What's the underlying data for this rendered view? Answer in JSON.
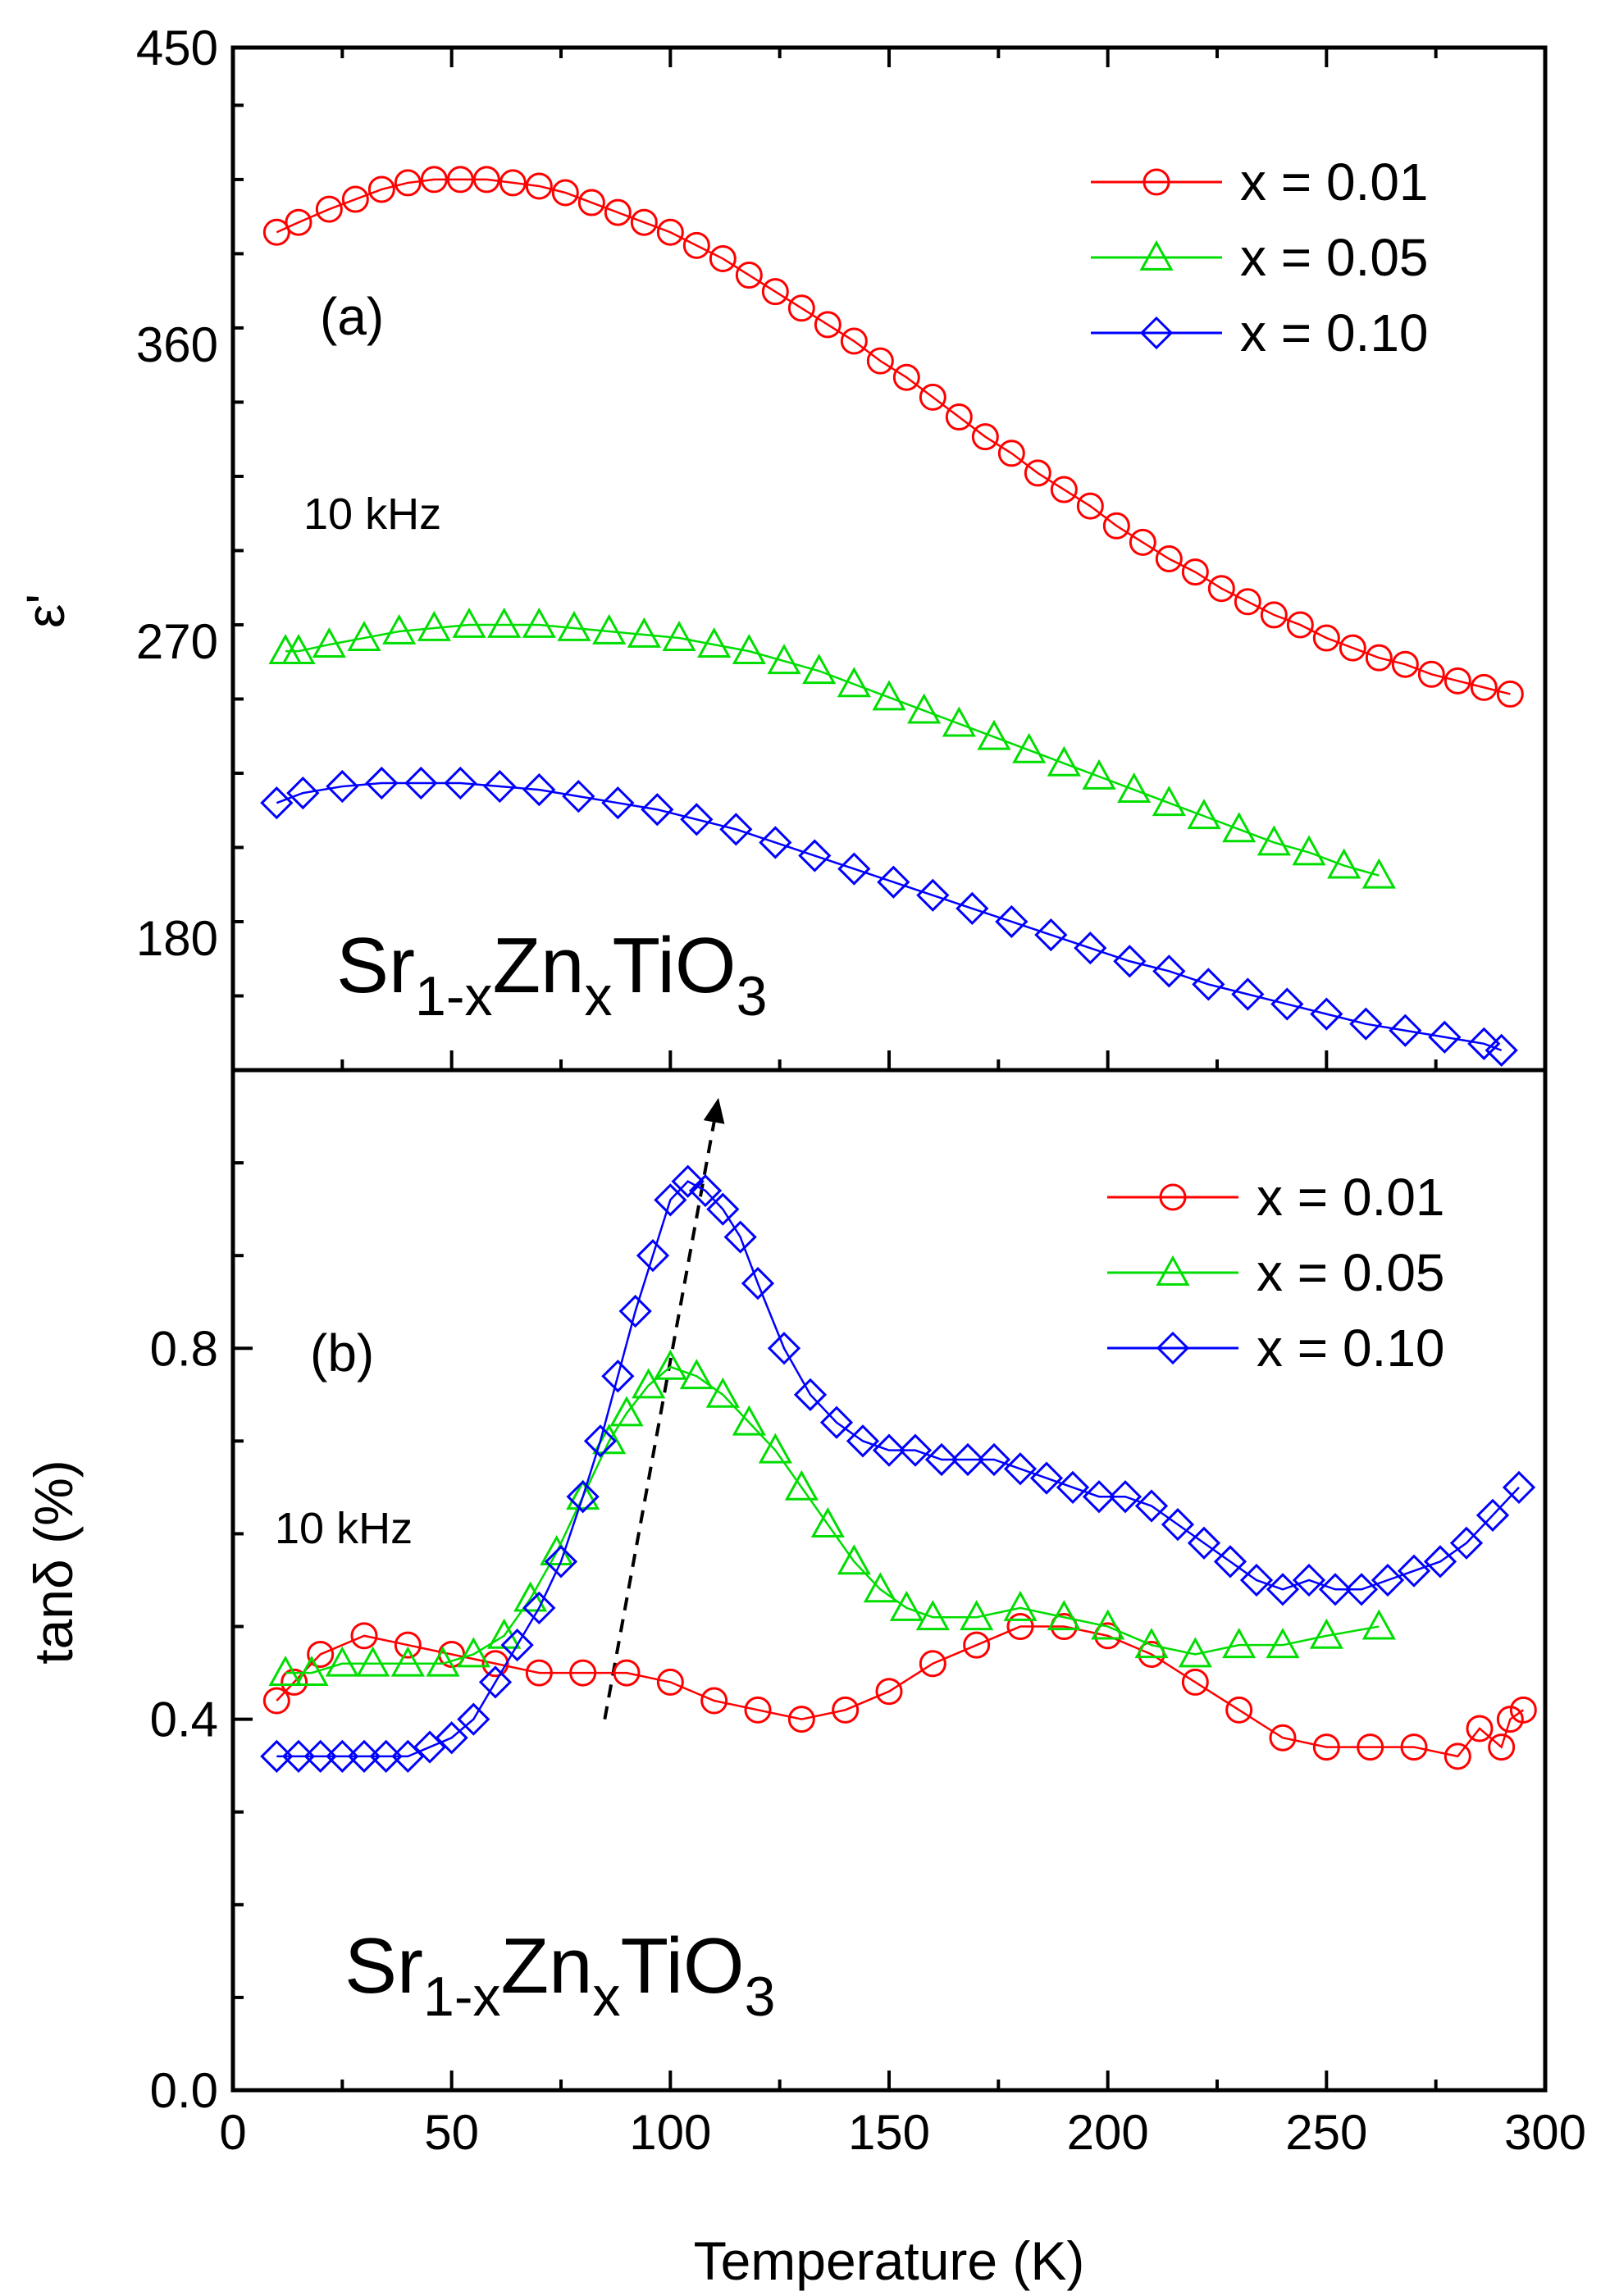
{
  "chart_data": [
    {
      "type": "line",
      "panel_label": "(a)",
      "ylabel": "ε'",
      "annotation": "10 kHz",
      "formula": {
        "p1": "Sr",
        "s1": "1-x",
        "p2": "Zn",
        "s2": "x",
        "p3": "TiO",
        "s3": "3"
      },
      "ylim": [
        140,
        450
      ],
      "yticks": [
        180,
        270,
        360,
        450
      ],
      "ytick_labels": [
        "180",
        "270",
        "360",
        "450"
      ],
      "xlim": [
        0,
        300
      ],
      "legend": "top-right",
      "series": [
        {
          "name": "x = 0.01",
          "label": "x = 0.01",
          "color": "#ff0000",
          "marker": "circle",
          "x": [
            10,
            15,
            22,
            28,
            34,
            40,
            46,
            52,
            58,
            64,
            70,
            76,
            82,
            88,
            94,
            100,
            106,
            112,
            118,
            124,
            130,
            136,
            142,
            148,
            154,
            160,
            166,
            172,
            178,
            184,
            190,
            196,
            202,
            208,
            214,
            220,
            226,
            232,
            238,
            244,
            250,
            256,
            262,
            268,
            274,
            280,
            286,
            292
          ],
          "y": [
            394,
            397,
            401,
            404,
            407,
            409,
            410,
            410,
            410,
            409,
            408,
            406,
            403,
            400,
            397,
            394,
            390,
            386,
            381,
            376,
            371,
            366,
            361,
            355,
            350,
            344,
            338,
            332,
            327,
            321,
            316,
            311,
            305,
            300,
            295,
            291,
            286,
            282,
            278,
            275,
            271,
            268,
            265,
            263,
            260,
            258,
            256,
            254
          ]
        },
        {
          "name": "x = 0.05",
          "label": "x = 0.05",
          "color": "#00dd00",
          "marker": "triangle",
          "x": [
            12,
            15,
            22,
            30,
            38,
            46,
            54,
            62,
            70,
            78,
            86,
            94,
            102,
            110,
            118,
            126,
            134,
            142,
            150,
            158,
            166,
            174,
            182,
            190,
            198,
            206,
            214,
            222,
            230,
            238,
            246,
            254,
            262
          ],
          "y": [
            267,
            267,
            269,
            271,
            273,
            274,
            275,
            275,
            275,
            274,
            273,
            272,
            271,
            269,
            267,
            264,
            261,
            257,
            253,
            249,
            245,
            241,
            237,
            233,
            229,
            225,
            221,
            217,
            213,
            209,
            206,
            202,
            199
          ]
        },
        {
          "name": "x = 0.10",
          "label": "x = 0.10",
          "color": "#0000ff",
          "marker": "diamond",
          "x": [
            10,
            16,
            25,
            34,
            43,
            52,
            61,
            70,
            79,
            88,
            97,
            106,
            115,
            124,
            133,
            142,
            151,
            160,
            169,
            178,
            187,
            196,
            205,
            214,
            223,
            232,
            241,
            250,
            259,
            268,
            277,
            286,
            290
          ],
          "y": [
            221,
            224,
            226,
            227,
            227,
            227,
            226,
            225,
            223,
            221,
            219,
            216,
            213,
            209,
            205,
            201,
            197,
            193,
            189,
            185,
            181,
            177,
            173,
            170,
            166,
            163,
            160,
            157,
            154,
            152,
            150,
            148,
            146
          ]
        }
      ]
    },
    {
      "type": "line",
      "panel_label": "(b)",
      "ylabel": "tanδ (%)",
      "xlabel": "Temperature (K)",
      "annotation": "10 kHz",
      "formula": {
        "p1": "Sr",
        "s1": "1-x",
        "p2": "Zn",
        "s2": "x",
        "p3": "TiO",
        "s3": "3"
      },
      "ylim": [
        0.0,
        1.1
      ],
      "yticks": [
        0.0,
        0.4,
        0.8
      ],
      "ytick_labels": [
        "0.0",
        "0.4",
        "0.8"
      ],
      "xlim": [
        0,
        300
      ],
      "xticks": [
        0,
        50,
        100,
        150,
        200,
        250,
        300
      ],
      "xtick_labels": [
        "0",
        "50",
        "100",
        "150",
        "200",
        "250",
        "300"
      ],
      "arrow": {
        "from": [
          85,
          0.4
        ],
        "to": [
          111,
          1.07
        ]
      },
      "legend": "top-right",
      "series": [
        {
          "name": "x = 0.01",
          "label": "x = 0.01",
          "color": "#ff0000",
          "marker": "circle",
          "x": [
            10,
            14,
            20,
            30,
            40,
            50,
            60,
            70,
            80,
            90,
            100,
            110,
            120,
            130,
            140,
            150,
            160,
            170,
            180,
            190,
            200,
            210,
            220,
            230,
            240,
            250,
            260,
            270,
            280,
            285,
            290,
            292,
            295
          ],
          "y": [
            0.42,
            0.44,
            0.47,
            0.49,
            0.48,
            0.47,
            0.46,
            0.45,
            0.45,
            0.45,
            0.44,
            0.42,
            0.41,
            0.4,
            0.41,
            0.43,
            0.46,
            0.48,
            0.5,
            0.5,
            0.49,
            0.47,
            0.44,
            0.41,
            0.38,
            0.37,
            0.37,
            0.37,
            0.36,
            0.39,
            0.37,
            0.4,
            0.41
          ]
        },
        {
          "name": "x = 0.05",
          "label": "x = 0.05",
          "color": "#00dd00",
          "marker": "triangle",
          "x": [
            12,
            18,
            25,
            32,
            40,
            48,
            55,
            62,
            68,
            74,
            80,
            86,
            90,
            95,
            100,
            106,
            112,
            118,
            124,
            130,
            136,
            142,
            148,
            154,
            160,
            170,
            180,
            190,
            200,
            210,
            220,
            230,
            240,
            250,
            262
          ],
          "y": [
            0.45,
            0.45,
            0.46,
            0.46,
            0.46,
            0.46,
            0.47,
            0.49,
            0.53,
            0.58,
            0.64,
            0.7,
            0.73,
            0.76,
            0.78,
            0.77,
            0.75,
            0.72,
            0.69,
            0.65,
            0.61,
            0.57,
            0.54,
            0.52,
            0.51,
            0.51,
            0.52,
            0.51,
            0.5,
            0.48,
            0.47,
            0.48,
            0.48,
            0.49,
            0.5
          ]
        },
        {
          "name": "x = 0.10",
          "label": "x = 0.10",
          "color": "#0000ff",
          "marker": "diamond",
          "x": [
            10,
            15,
            20,
            25,
            30,
            35,
            40,
            45,
            50,
            55,
            60,
            65,
            70,
            75,
            80,
            84,
            88,
            92,
            96,
            100,
            104,
            108,
            112,
            116,
            120,
            126,
            132,
            138,
            144,
            150,
            156,
            162,
            168,
            174,
            180,
            186,
            192,
            198,
            204,
            210,
            216,
            222,
            228,
            234,
            240,
            246,
            252,
            258,
            264,
            270,
            276,
            282,
            288,
            294
          ],
          "y": [
            0.36,
            0.36,
            0.36,
            0.36,
            0.36,
            0.36,
            0.36,
            0.37,
            0.38,
            0.4,
            0.44,
            0.48,
            0.52,
            0.57,
            0.64,
            0.7,
            0.77,
            0.84,
            0.9,
            0.96,
            0.98,
            0.97,
            0.95,
            0.92,
            0.87,
            0.8,
            0.75,
            0.72,
            0.7,
            0.69,
            0.69,
            0.68,
            0.68,
            0.68,
            0.67,
            0.66,
            0.65,
            0.64,
            0.64,
            0.63,
            0.61,
            0.59,
            0.57,
            0.55,
            0.54,
            0.55,
            0.54,
            0.54,
            0.55,
            0.56,
            0.57,
            0.59,
            0.62,
            0.65
          ]
        }
      ]
    }
  ]
}
